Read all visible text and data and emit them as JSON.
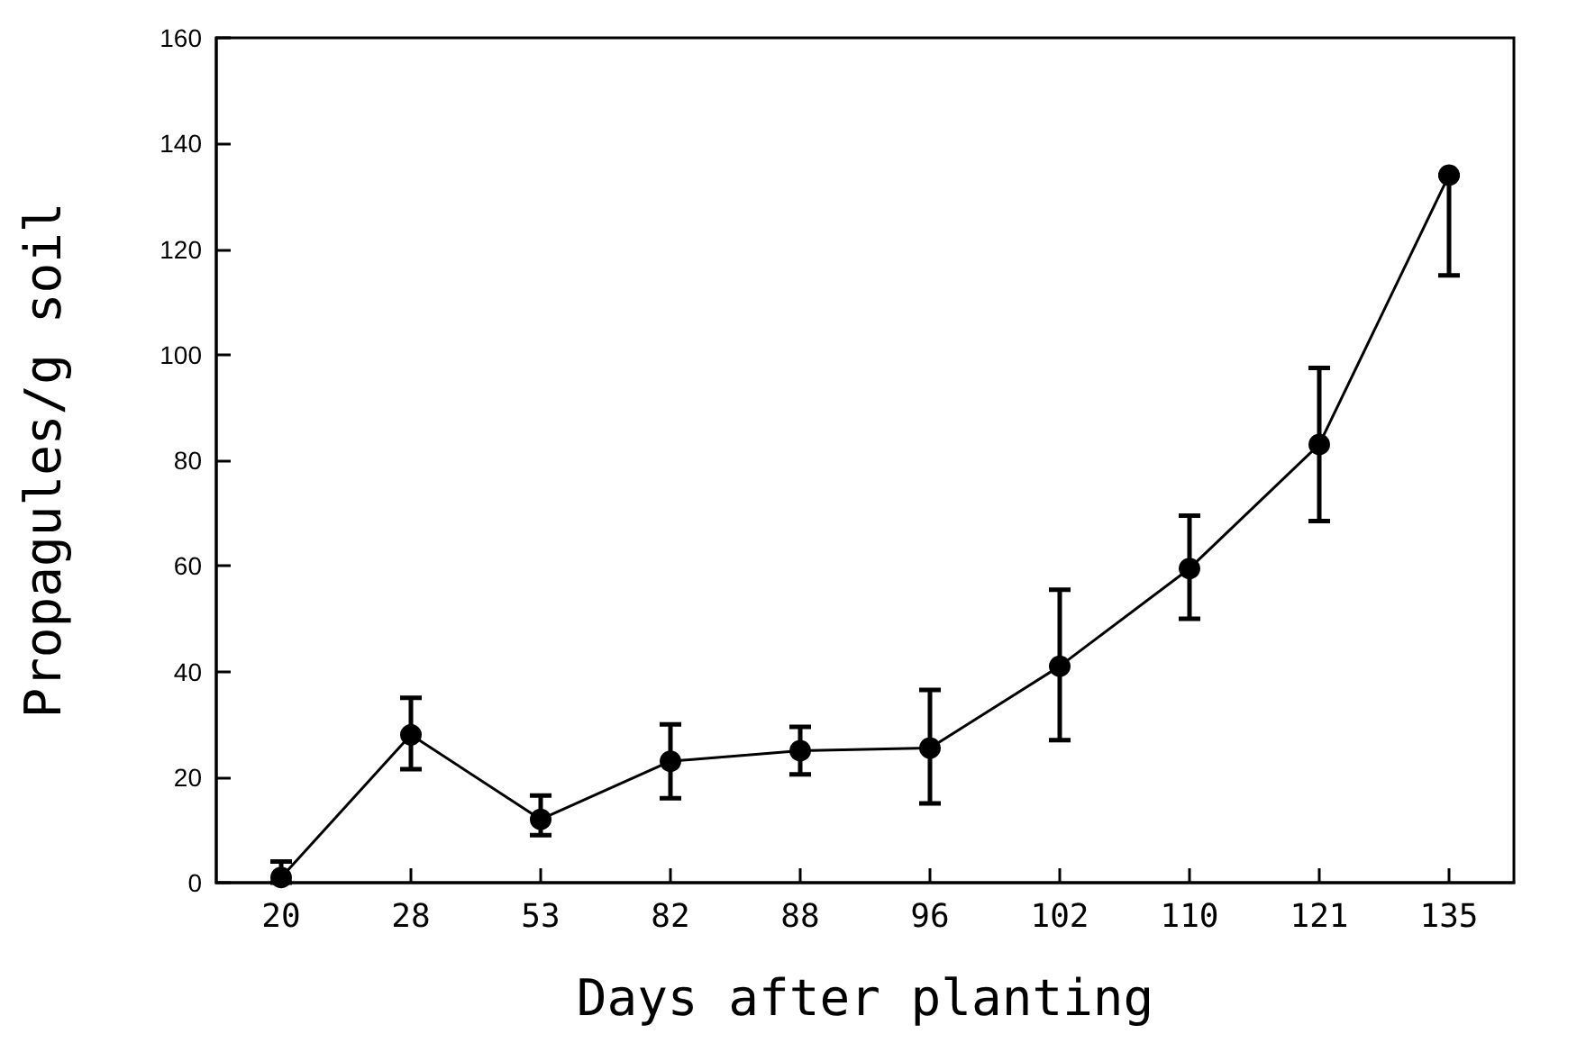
{
  "chart_data": {
    "type": "line",
    "xlabel": "Days after planting",
    "ylabel": "Propagules/g soil",
    "categories": [
      "20",
      "28",
      "53",
      "82",
      "88",
      "96",
      "102",
      "110",
      "121",
      "135"
    ],
    "series": [
      {
        "color": "#000000",
        "values": [
          1,
          28,
          12,
          23,
          25,
          25.5,
          41,
          59.5,
          83,
          134
        ],
        "errors": [
          [
            0,
            4
          ],
          [
            21.5,
            35
          ],
          [
            9,
            16.5
          ],
          [
            16,
            30
          ],
          [
            20.5,
            29.5
          ],
          [
            15,
            36.5
          ],
          [
            27,
            55.5
          ],
          [
            50,
            69.5
          ],
          [
            68.5,
            97.5
          ],
          [
            115,
            134
          ]
        ]
      }
    ],
    "ylim": [
      0,
      160
    ],
    "yticks": [
      0,
      20,
      40,
      60,
      80,
      100,
      120,
      140,
      160
    ],
    "marker": "circle",
    "line_style": "solid",
    "grid": false
  }
}
